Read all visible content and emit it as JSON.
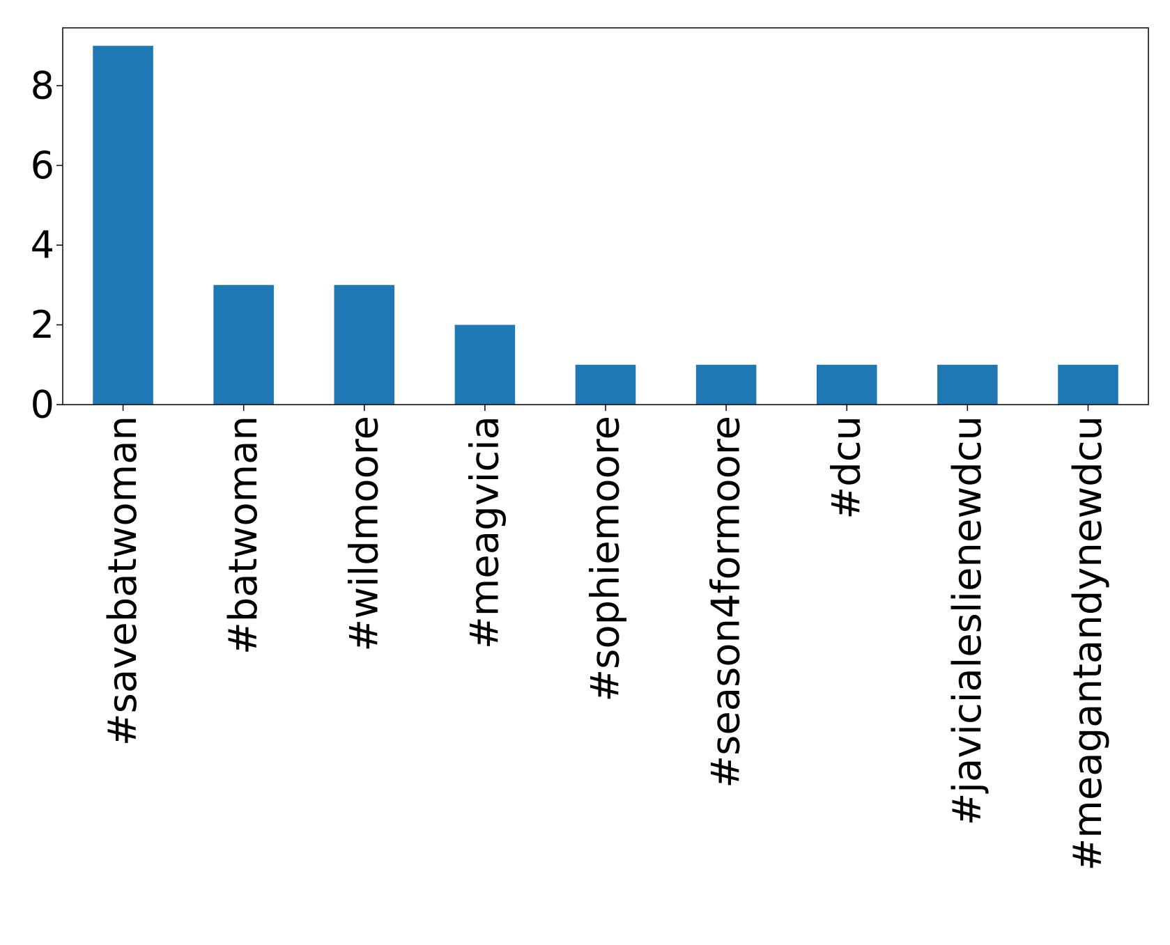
{
  "chart_data": {
    "type": "bar",
    "categories": [
      "#savebatwoman",
      "#batwoman",
      "#wildmoore",
      "#meagvicia",
      "#sophiemoore",
      "#season4formoore",
      "#dcu",
      "#javicialeslienewdcu",
      "#meagantandynewdcu"
    ],
    "values": [
      9,
      3,
      3,
      2,
      1,
      1,
      1,
      1,
      1
    ],
    "title": "",
    "xlabel": "",
    "ylabel": "",
    "ylim": [
      0,
      9.45
    ],
    "yticks": [
      0,
      2,
      4,
      6,
      8
    ],
    "bar_color": "#1f77b4",
    "grid": false,
    "legend": "none"
  }
}
